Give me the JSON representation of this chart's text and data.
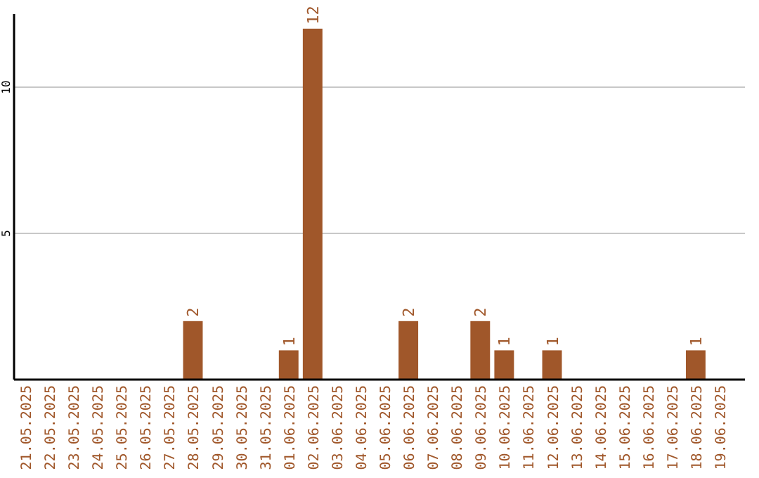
{
  "chart_data": {
    "type": "bar",
    "categories": [
      "21.05.2025",
      "22.05.2025",
      "23.05.2025",
      "24.05.2025",
      "25.05.2025",
      "26.05.2025",
      "27.05.2025",
      "28.05.2025",
      "29.05.2025",
      "30.05.2025",
      "31.05.2025",
      "01.06.2025",
      "02.06.2025",
      "03.06.2025",
      "04.06.2025",
      "05.06.2025",
      "06.06.2025",
      "07.06.2025",
      "08.06.2025",
      "09.06.2025",
      "10.06.2025",
      "11.06.2025",
      "12.06.2025",
      "13.06.2025",
      "14.06.2025",
      "15.06.2025",
      "16.06.2025",
      "17.06.2025",
      "18.06.2025",
      "19.06.2025"
    ],
    "values": [
      0,
      0,
      0,
      0,
      0,
      0,
      0,
      2,
      0,
      0,
      0,
      1,
      12,
      0,
      0,
      0,
      2,
      0,
      0,
      2,
      1,
      0,
      1,
      0,
      0,
      0,
      0,
      0,
      1,
      0
    ],
    "value_labels": [
      null,
      null,
      null,
      null,
      null,
      null,
      null,
      "2",
      null,
      null,
      null,
      "1",
      "12",
      null,
      null,
      null,
      "2",
      null,
      null,
      "2",
      "1",
      null,
      "1",
      null,
      null,
      null,
      null,
      null,
      "1",
      null
    ],
    "color": "#a0572a",
    "ylim": [
      0,
      12.5
    ],
    "yticks": [
      5,
      10
    ],
    "grid": "y"
  }
}
